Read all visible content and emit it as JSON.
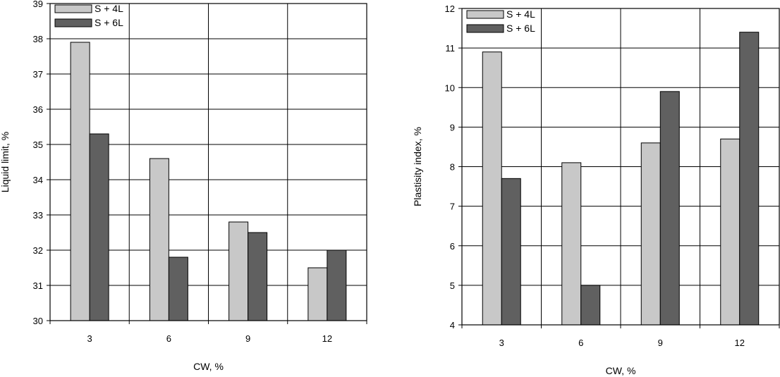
{
  "chart_data": [
    {
      "type": "bar",
      "categories": [
        "3",
        "6",
        "9",
        "12"
      ],
      "xlabel": "CW, %",
      "ylabel": "Liquid  limit, %",
      "ylim": [
        30,
        39
      ],
      "yticks": [
        "30",
        "31",
        "32",
        "33",
        "34",
        "35",
        "36",
        "37",
        "38",
        "39"
      ],
      "grid": true,
      "legend_position": "top-left",
      "series": [
        {
          "name": "S + 4L",
          "color": "#c8c8c8",
          "values": [
            37.9,
            34.6,
            32.8,
            31.5
          ]
        },
        {
          "name": "S + 6L",
          "color": "#606060",
          "values": [
            35.3,
            31.8,
            32.5,
            32.0
          ]
        }
      ]
    },
    {
      "type": "bar",
      "categories": [
        "3",
        "6",
        "9",
        "12"
      ],
      "xlabel": "CW, %",
      "ylabel": "Plastisity index, %",
      "ylim": [
        4,
        12
      ],
      "yticks": [
        "4",
        "5",
        "6",
        "7",
        "8",
        "9",
        "10",
        "11",
        "12"
      ],
      "grid": true,
      "legend_position": "top-left",
      "series": [
        {
          "name": "S + 4L",
          "color": "#c8c8c8",
          "values": [
            10.9,
            8.1,
            8.6,
            8.7
          ]
        },
        {
          "name": "S + 6L",
          "color": "#606060",
          "values": [
            7.7,
            5.0,
            9.9,
            11.4
          ]
        }
      ]
    }
  ]
}
